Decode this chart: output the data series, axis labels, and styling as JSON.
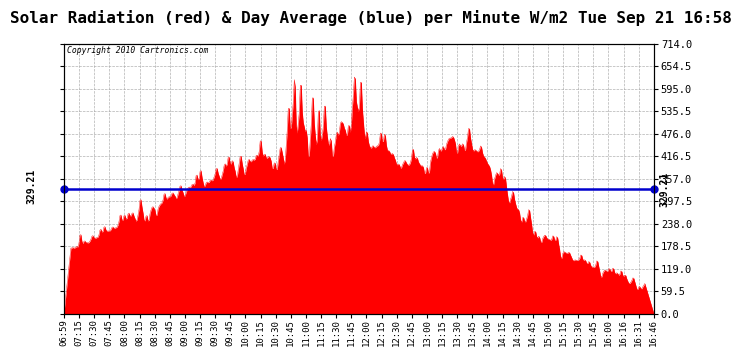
{
  "title": "Solar Radiation (red) & Day Average (blue) per Minute W/m2 Tue Sep 21 16:58",
  "copyright_text": "Copyright 2010 Cartronics.com",
  "avg_value": 329.21,
  "y_max": 714.0,
  "y_min": 0.0,
  "y_ticks": [
    0.0,
    59.5,
    119.0,
    178.5,
    238.0,
    297.5,
    357.0,
    416.5,
    476.0,
    535.5,
    595.0,
    654.5,
    714.0
  ],
  "fill_color": "#ff0000",
  "line_color": "#0000cd",
  "bg_color": "#ffffff",
  "grid_color": "#aaaaaa",
  "title_fontsize": 11.5,
  "x_labels": [
    "06:59",
    "07:15",
    "07:30",
    "07:45",
    "08:00",
    "08:15",
    "08:30",
    "08:45",
    "09:00",
    "09:15",
    "09:30",
    "09:45",
    "10:00",
    "10:15",
    "10:30",
    "10:45",
    "11:00",
    "11:15",
    "11:30",
    "11:45",
    "12:00",
    "12:15",
    "12:30",
    "12:45",
    "13:00",
    "13:15",
    "13:30",
    "13:45",
    "14:00",
    "14:15",
    "14:30",
    "14:45",
    "15:00",
    "15:15",
    "15:30",
    "15:45",
    "16:00",
    "16:16",
    "16:31",
    "16:46"
  ]
}
